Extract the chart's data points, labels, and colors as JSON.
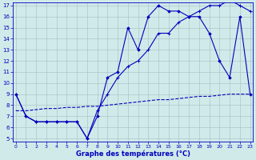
{
  "title": "Graphe des températures (°C)",
  "background_color": "#d0eaea",
  "grid_color": "#a8c8c8",
  "line_color": "#0000bb",
  "xlim": [
    0,
    23
  ],
  "ylim": [
    5,
    17
  ],
  "yticks": [
    5,
    6,
    7,
    8,
    9,
    10,
    11,
    12,
    13,
    14,
    15,
    16,
    17
  ],
  "xticks": [
    0,
    1,
    2,
    3,
    4,
    5,
    6,
    7,
    8,
    9,
    10,
    11,
    12,
    13,
    14,
    15,
    16,
    17,
    18,
    19,
    20,
    21,
    22,
    23
  ],
  "series1_x": [
    0,
    1,
    2,
    3,
    4,
    5,
    6,
    7,
    8,
    9,
    10,
    11,
    12,
    13,
    14,
    15,
    16,
    17,
    18,
    19,
    20,
    21,
    22,
    23
  ],
  "series1_y": [
    9.0,
    7.0,
    6.5,
    6.5,
    6.5,
    6.5,
    6.5,
    5.0,
    7.0,
    10.5,
    11.0,
    15.0,
    13.0,
    16.0,
    17.0,
    16.5,
    16.5,
    16.0,
    16.0,
    14.5,
    12.0,
    10.5,
    16.0,
    9.0
  ],
  "series2_x": [
    0,
    1,
    2,
    3,
    4,
    5,
    6,
    7,
    8,
    9,
    10,
    11,
    12,
    13,
    14,
    15,
    16,
    17,
    18,
    19,
    20,
    21,
    22,
    23
  ],
  "series2_y": [
    9.0,
    7.0,
    6.5,
    6.5,
    6.5,
    6.5,
    6.5,
    5.0,
    7.5,
    9.0,
    10.5,
    11.5,
    12.0,
    13.0,
    14.5,
    14.5,
    15.5,
    16.0,
    16.5,
    17.0,
    17.0,
    17.5,
    17.0,
    16.5
  ],
  "series3_x": [
    0,
    1,
    2,
    3,
    4,
    5,
    6,
    7,
    8,
    9,
    10,
    11,
    12,
    13,
    14,
    15,
    16,
    17,
    18,
    19,
    20,
    21,
    22,
    23
  ],
  "series3_y": [
    7.5,
    7.5,
    7.6,
    7.7,
    7.7,
    7.8,
    7.8,
    7.9,
    7.9,
    8.0,
    8.1,
    8.2,
    8.3,
    8.4,
    8.5,
    8.5,
    8.6,
    8.7,
    8.8,
    8.8,
    8.9,
    9.0,
    9.0,
    9.0
  ]
}
